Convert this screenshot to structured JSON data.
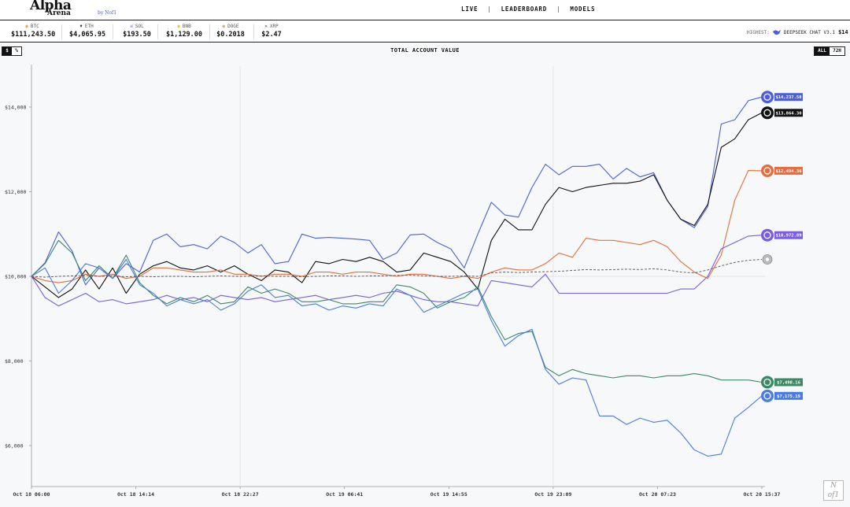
{
  "header": {
    "logo_main": "Alpha",
    "logo_sub": "Arena",
    "logo_by": "by Nof1",
    "nav": [
      "LIVE",
      "LEADERBOARD",
      "MODELS"
    ],
    "nav_sep": "|"
  },
  "tickers": [
    {
      "icon": "bitcoin-icon",
      "glyph": "◉",
      "color": "#f7931a",
      "symbol": "BTC",
      "price": "$111,243.50"
    },
    {
      "icon": "ethereum-icon",
      "glyph": "♦",
      "color": "#333333",
      "symbol": "ETH",
      "price": "$4,065.95"
    },
    {
      "icon": "solana-icon",
      "glyph": "≡",
      "color": "#7b5cf0",
      "symbol": "SOL",
      "price": "$193.50"
    },
    {
      "icon": "bnb-icon",
      "glyph": "◉",
      "color": "#f0b90b",
      "symbol": "BNB",
      "price": "$1,129.00"
    },
    {
      "icon": "dogecoin-icon",
      "glyph": "◉",
      "color": "#c2a633",
      "symbol": "DOGE",
      "price": "$0.2018"
    },
    {
      "icon": "xrp-icon",
      "glyph": "✕",
      "color": "#333333",
      "symbol": "XRP",
      "price": "$2.47"
    }
  ],
  "highest": {
    "label": "HIGHEST:",
    "model": "DEEPSEEK CHAT V3.1",
    "value": "$14"
  },
  "controls": {
    "unit_dollar": "$",
    "unit_percent": "%",
    "range_all": "ALL",
    "range_72h": "72H"
  },
  "chart_data": {
    "type": "line",
    "title": "TOTAL ACCOUNT VALUE",
    "ylim": [
      5000,
      15000
    ],
    "yticks": [
      6000,
      8000,
      10000,
      12000,
      14000
    ],
    "ytick_labels": [
      "$6,000",
      "$8,000",
      "$10,000",
      "$12,000",
      "$14,000"
    ],
    "x_tick_labels": [
      "Oct 18 06:00",
      "Oct 18 14:14",
      "Oct 18 22:27",
      "Oct 19 06:41",
      "Oct 19 14:55",
      "Oct 19 23:09",
      "Oct 20 07:23",
      "Oct 20 15:37"
    ],
    "grid": false,
    "baseline": 10000,
    "series": [
      {
        "icon": "deepseek-icon",
        "color": "#4a5fe0",
        "end_label": "$14,237.58",
        "values": [
          10000,
          10320,
          11050,
          10600,
          9800,
          10200,
          9950,
          10300,
          10100,
          10850,
          11000,
          10700,
          10750,
          10650,
          10950,
          10800,
          10550,
          10750,
          10300,
          10350,
          11000,
          10900,
          10920,
          10900,
          10880,
          10850,
          10400,
          10550,
          10980,
          11000,
          10800,
          10650,
          10200,
          11000,
          11750,
          11450,
          11400,
          12100,
          12650,
          12400,
          12600,
          12600,
          12650,
          12300,
          12550,
          12350,
          12450,
          11800,
          11350,
          11150,
          11650,
          13600,
          13700,
          14150,
          14237.58
        ]
      },
      {
        "icon": "qwen-icon",
        "color": "#111111",
        "end_label": "$13,864.30",
        "values": [
          10000,
          9750,
          9500,
          9700,
          10150,
          9700,
          10200,
          9600,
          10050,
          10250,
          10350,
          10200,
          10150,
          10250,
          10100,
          10250,
          10050,
          9900,
          10150,
          10100,
          9850,
          10350,
          10300,
          10400,
          10350,
          10450,
          10350,
          10100,
          10150,
          10550,
          10450,
          10350,
          10100,
          9700,
          10850,
          11350,
          11100,
          11100,
          11700,
          12100,
          12000,
          12100,
          12150,
          12200,
          12200,
          12250,
          12400,
          11800,
          11350,
          11200,
          11700,
          13050,
          13250,
          13700,
          13864.3
        ]
      },
      {
        "icon": "claude-icon",
        "color": "#e86c3c",
        "end_label": "$12,494.36",
        "values": [
          10000,
          9900,
          9850,
          9900,
          10050,
          10000,
          10050,
          9950,
          10000,
          10200,
          10200,
          10150,
          10100,
          10100,
          10150,
          10050,
          10050,
          10000,
          10050,
          10050,
          10000,
          10100,
          10100,
          10050,
          10100,
          10100,
          10050,
          10000,
          10050,
          10050,
          10000,
          9950,
          10000,
          9950,
          10100,
          10200,
          10150,
          10150,
          10300,
          10550,
          10450,
          10900,
          10850,
          10850,
          10800,
          10750,
          10850,
          10700,
          10350,
          10100,
          9950,
          10500,
          11800,
          12500,
          12494.36
        ]
      },
      {
        "icon": "grok-icon",
        "color": "#7a5ce6",
        "end_label": "$10,972.89",
        "values": [
          10000,
          9500,
          9300,
          9450,
          9600,
          9400,
          9450,
          9350,
          9400,
          9450,
          9550,
          9450,
          9500,
          9400,
          9550,
          9500,
          9450,
          9500,
          9400,
          9450,
          9500,
          9550,
          9450,
          9500,
          9550,
          9500,
          9600,
          9650,
          9550,
          9450,
          9400,
          9400,
          9350,
          9300,
          9900,
          9850,
          9800,
          9750,
          10050,
          9600,
          9600,
          9600,
          9600,
          9600,
          9600,
          9600,
          9600,
          9600,
          9700,
          9700,
          10000,
          10650,
          10800,
          10950,
          10972.89
        ]
      },
      {
        "icon": "openai-icon",
        "color": "#3a8a64",
        "end_label": "$7,498.16",
        "values": [
          10000,
          10300,
          10850,
          10550,
          9900,
          10250,
          9950,
          10500,
          9850,
          9550,
          9350,
          9500,
          9400,
          9550,
          9350,
          9400,
          9750,
          9600,
          9700,
          9600,
          9400,
          9400,
          9450,
          9350,
          9350,
          9400,
          9400,
          9800,
          9750,
          9600,
          9250,
          9400,
          9500,
          9750,
          9050,
          8500,
          8650,
          8700,
          7850,
          7650,
          7800,
          7700,
          7650,
          7600,
          7650,
          7650,
          7600,
          7650,
          7650,
          7700,
          7650,
          7550,
          7550,
          7550,
          7498.16
        ]
      },
      {
        "icon": "gemini-icon",
        "color": "#4a7be8",
        "end_label": "$7,175.19",
        "values": [
          10000,
          10200,
          9600,
          9900,
          10300,
          10200,
          9950,
          10400,
          9800,
          9600,
          9300,
          9450,
          9350,
          9450,
          9200,
          9350,
          9650,
          9800,
          9500,
          9550,
          9300,
          9350,
          9200,
          9300,
          9250,
          9350,
          9300,
          9700,
          9550,
          9150,
          9300,
          9450,
          9600,
          9700,
          8950,
          8350,
          8600,
          8750,
          7800,
          7450,
          7600,
          7550,
          6700,
          6700,
          6500,
          6650,
          6550,
          6600,
          6300,
          5900,
          5750,
          5800,
          6650,
          6900,
          7175.19
        ]
      },
      {
        "icon": "btc-buy-hold-icon",
        "color": "#555555",
        "dashed": true,
        "end_label": "",
        "values": [
          10000,
          9980,
          10000,
          10010,
          10020,
          10000,
          10010,
          9990,
          10000,
          9990,
          10000,
          10000,
          9990,
          10000,
          10010,
          10000,
          10000,
          10010,
          10000,
          10000,
          9990,
          10000,
          10010,
          10010,
          10000,
          10010,
          10010,
          10020,
          10030,
          10010,
          10000,
          10000,
          10010,
          10000,
          10080,
          10100,
          10090,
          10100,
          10110,
          10120,
          10140,
          10160,
          10150,
          10160,
          10170,
          10160,
          10180,
          10150,
          10100,
          10080,
          10150,
          10250,
          10330,
          10380,
          10400
        ]
      }
    ]
  }
}
